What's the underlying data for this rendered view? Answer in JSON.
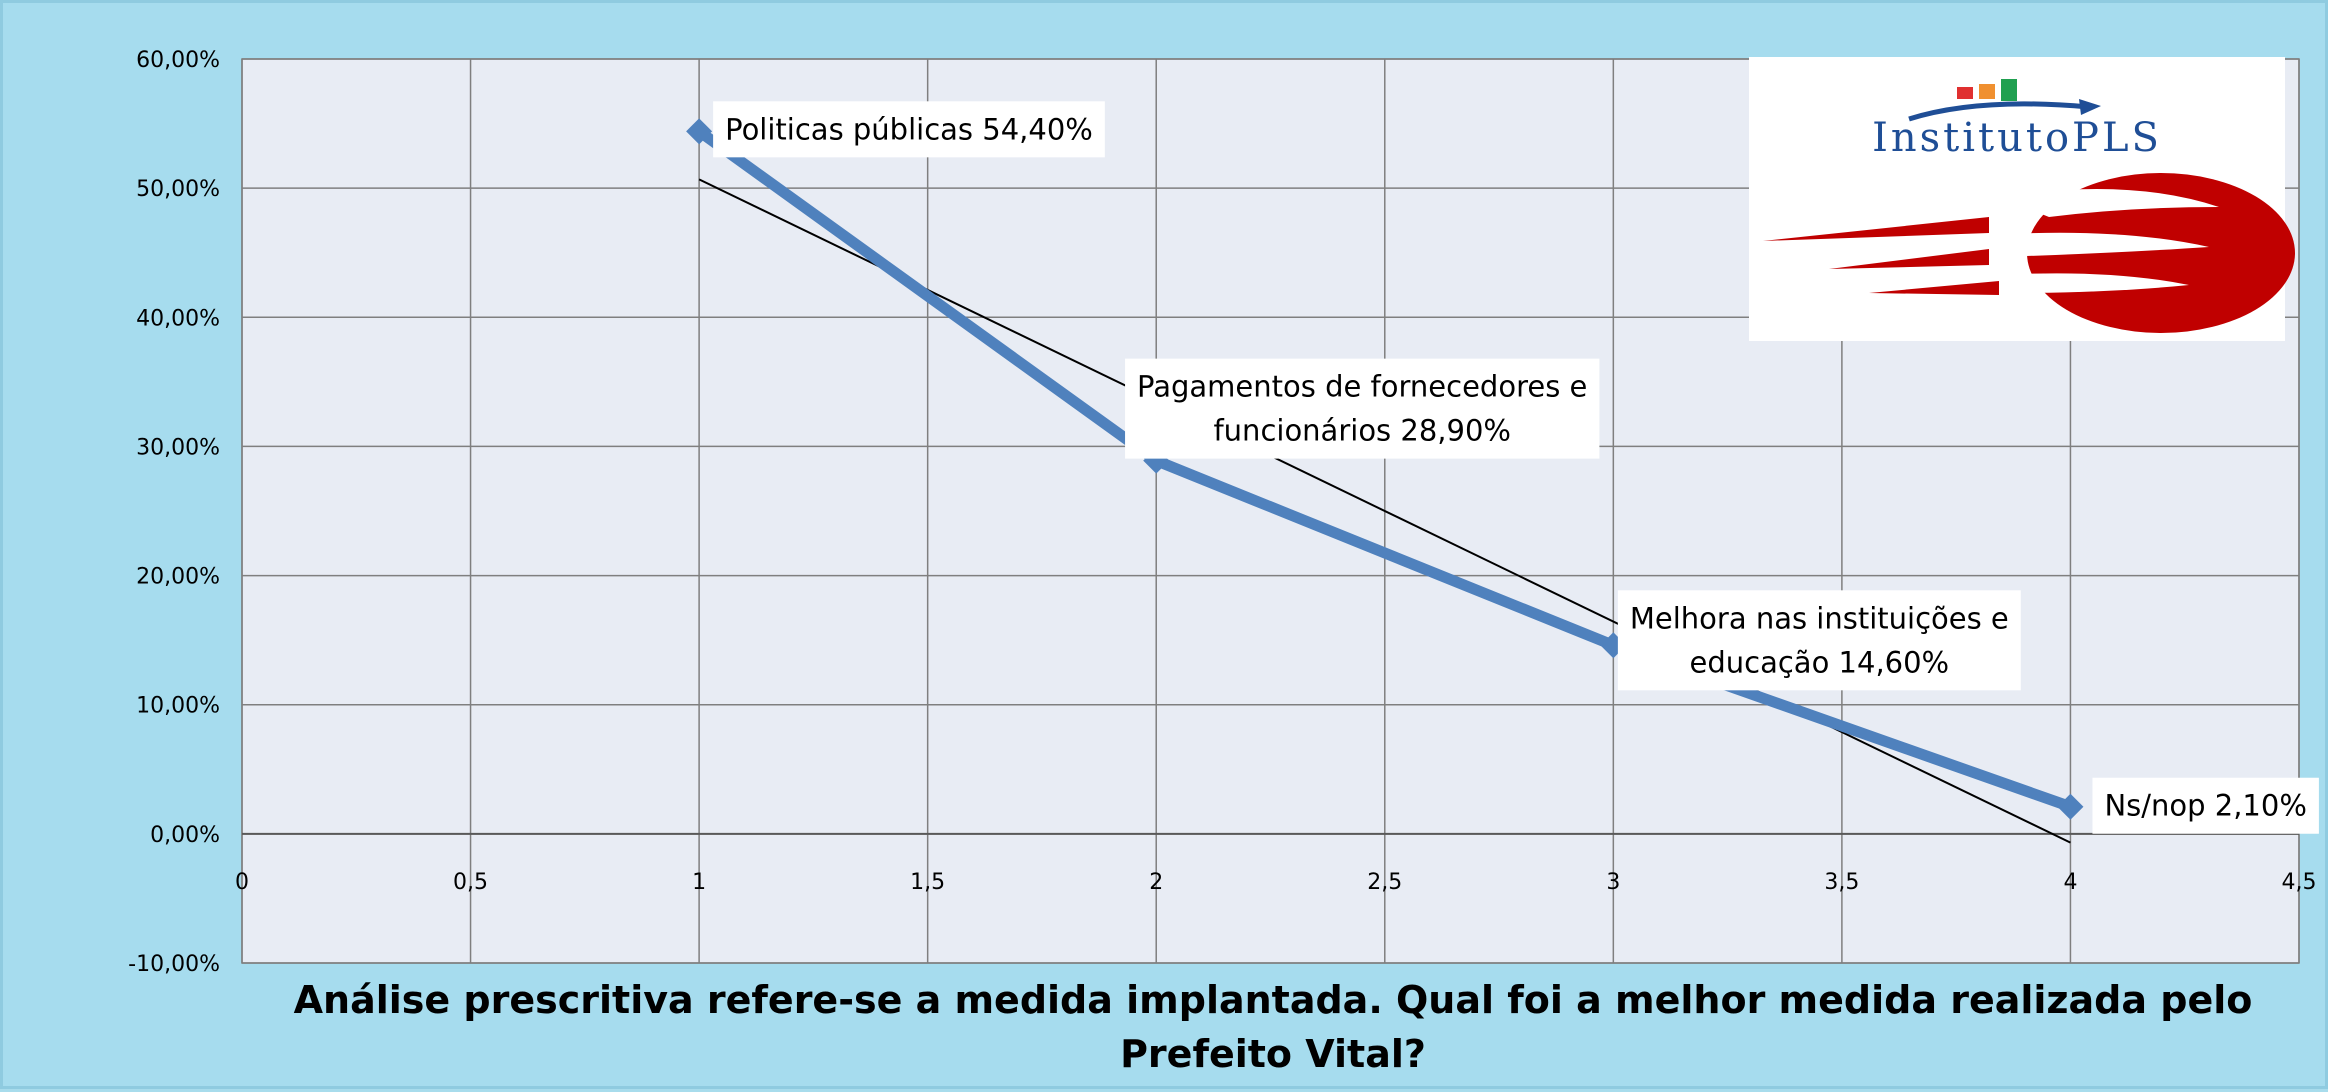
{
  "chart_data": {
    "type": "scatter",
    "title_lines": [
      "Análise prescritiva refere-se a medida implantada.  Qual foi a melhor medida realizada pelo",
      "Prefeito Vital?"
    ],
    "xlim": [
      0,
      4.5
    ],
    "ylim": [
      -10,
      60
    ],
    "x_ticks": [
      "0",
      "0,5",
      "1",
      "1,5",
      "2",
      "2,5",
      "3",
      "3,5",
      "4",
      "4,5"
    ],
    "y_ticks": [
      "60,00%",
      "50,00%",
      "40,00%",
      "30,00%",
      "20,00%",
      "10,00%",
      "0,00%",
      "-10,00%"
    ],
    "grid": true,
    "series": [
      {
        "x": [
          1,
          2,
          3,
          4
        ],
        "y": [
          54.4,
          28.9,
          14.6,
          2.1
        ],
        "color": "#4f81bd",
        "labels": [
          [
            "Politicas públicas  54,40%"
          ],
          [
            "Pagamentos de fornecedores e",
            "funcionários  28,90%"
          ],
          [
            "Melhora nas instituições e",
            "educação  14,60%"
          ],
          [
            "Ns/nop  2,10%"
          ]
        ]
      }
    ],
    "trendline": {
      "type": "linear",
      "color": "#000000"
    }
  },
  "logo": {
    "text": "InstitutoPLS",
    "colors": {
      "text": "#1f4e96",
      "swoosh": "#c00000",
      "bar1": "#e03030",
      "bar2": "#f09030",
      "bar3": "#20a050"
    }
  },
  "colors": {
    "background": "#a6dcee",
    "plot_area": "#e8ecf4",
    "grid": "#7f7f7f"
  }
}
